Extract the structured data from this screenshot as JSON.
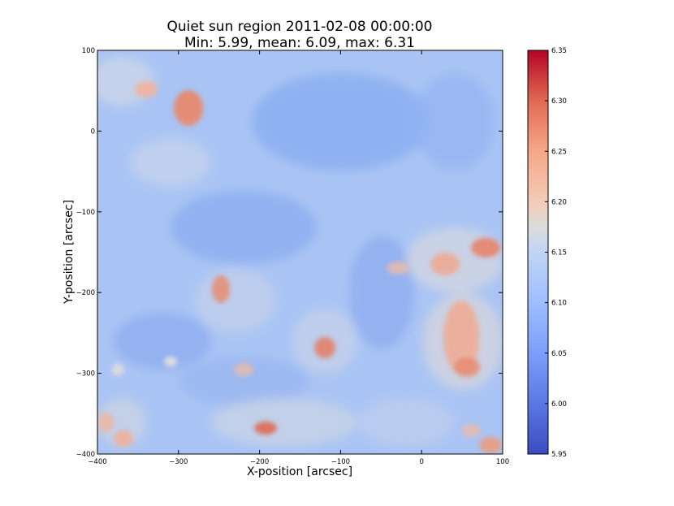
{
  "chart_data": {
    "type": "heatmap",
    "title": "Quiet sun region 2011-02-08 00:00:00",
    "subtitle": "Min: 5.99, mean: 6.09, max: 6.31",
    "xlabel": "X-position [arcsec]",
    "ylabel": "Y-position [arcsec]",
    "xlim": [
      -400,
      100
    ],
    "ylim": [
      -400,
      100
    ],
    "xticks": [
      -400,
      -300,
      -200,
      -100,
      0,
      100
    ],
    "xtick_labels": [
      "−400",
      "−300",
      "−200",
      "−100",
      "0",
      "100"
    ],
    "yticks": [
      100,
      0,
      -100,
      -200,
      -300,
      -400
    ],
    "ytick_labels": [
      "100",
      "0",
      "−100",
      "−200",
      "−300",
      "−400"
    ],
    "colorbar": {
      "colormap": "coolwarm",
      "range": [
        5.95,
        6.35
      ],
      "ticks": [
        6.35,
        6.3,
        6.25,
        6.2,
        6.15,
        6.1,
        6.05,
        6.0,
        5.95
      ],
      "tick_labels": [
        "6.35",
        "6.30",
        "6.25",
        "6.20",
        "6.15",
        "6.10",
        "6.05",
        "6.00",
        "5.95"
      ]
    },
    "stats": {
      "min": 5.99,
      "mean": 6.09,
      "max": 6.31
    },
    "grid": false
  }
}
